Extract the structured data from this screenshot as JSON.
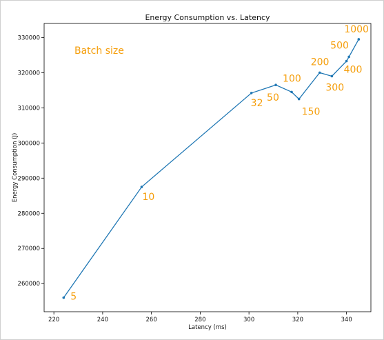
{
  "chart_data": {
    "type": "line",
    "title": "Energy Consumption vs. Latency",
    "xlabel": "Latency (ms)",
    "ylabel": "Energy Consumption (J)",
    "xlim": [
      216,
      350
    ],
    "ylim": [
      252000,
      334000
    ],
    "xticks": [
      220,
      240,
      260,
      280,
      300,
      320,
      340
    ],
    "yticks": [
      260000,
      270000,
      280000,
      290000,
      300000,
      310000,
      320000,
      330000
    ],
    "grid": false,
    "line_color": "#1f77b4",
    "annotation_color": "#f59e0b",
    "legend_text": "Batch size",
    "points": [
      {
        "x": 224,
        "y": 256000,
        "label": "5"
      },
      {
        "x": 256,
        "y": 287500,
        "label": "10"
      },
      {
        "x": 301,
        "y": 314200,
        "label": "32"
      },
      {
        "x": 311,
        "y": 316500,
        "label": "50"
      },
      {
        "x": 317.5,
        "y": 314500,
        "label": "100"
      },
      {
        "x": 320.5,
        "y": 312500,
        "label": "150"
      },
      {
        "x": 329,
        "y": 320000,
        "label": "200"
      },
      {
        "x": 334,
        "y": 319000,
        "label": "300"
      },
      {
        "x": 340,
        "y": 323300,
        "label": "400"
      },
      {
        "x": 341,
        "y": 324500,
        "label": "500"
      },
      {
        "x": 345,
        "y": 329500,
        "label": "1000"
      }
    ]
  }
}
